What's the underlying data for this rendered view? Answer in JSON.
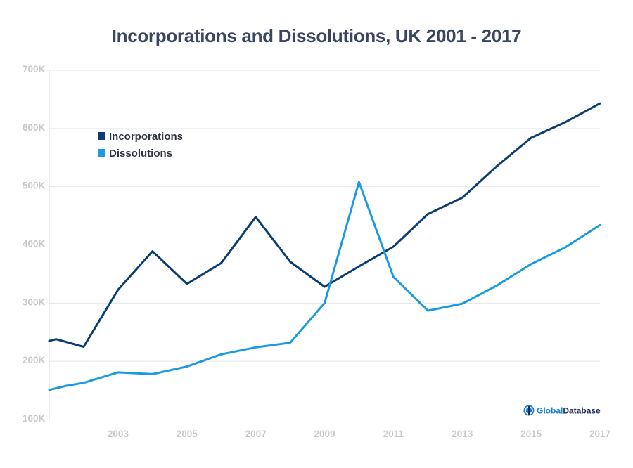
{
  "chart_data": {
    "type": "line",
    "title": "Incorporations and Dissolutions, UK 2001 - 2017",
    "xlabel": "",
    "ylabel": "",
    "x": [
      2001,
      2002,
      2003,
      2004,
      2005,
      2006,
      2007,
      2008,
      2009,
      2010,
      2011,
      2012,
      2013,
      2014,
      2015,
      2016,
      2017
    ],
    "xlim": [
      2001,
      2017
    ],
    "x_tick_values": [
      2003,
      2005,
      2007,
      2009,
      2011,
      2013,
      2015,
      2017
    ],
    "x_tick_labels": [
      "2003",
      "2005",
      "2007",
      "2009",
      "2011",
      "2013",
      "2015",
      "2017"
    ],
    "ylim": [
      100000,
      700000
    ],
    "y_tick_values": [
      100000,
      200000,
      300000,
      400000,
      500000,
      600000,
      700000
    ],
    "y_tick_labels": [
      "100K",
      "200K",
      "300K",
      "400K",
      "500K",
      "600K",
      "700K"
    ],
    "grid": "horizontal",
    "legend_position": "top-left",
    "series": [
      {
        "name": "Incorporations",
        "color": "#0a3d73",
        "x": [
          2001,
          2001.2,
          2002,
          2003,
          2004,
          2005,
          2006,
          2007,
          2008,
          2009,
          2010,
          2011,
          2012,
          2013,
          2014,
          2015,
          2016,
          2017
        ],
        "values": [
          235000,
          238000,
          225000,
          323000,
          389000,
          333000,
          369000,
          448000,
          371000,
          328000,
          363000,
          397000,
          453000,
          481000,
          535000,
          584000,
          611000,
          643000
        ]
      },
      {
        "name": "Dissolutions",
        "color": "#1a9ae0",
        "x": [
          2001,
          2001.5,
          2002,
          2003,
          2004,
          2005,
          2006,
          2007,
          2008,
          2009,
          2010,
          2011,
          2012,
          2013,
          2014,
          2015,
          2016,
          2017
        ],
        "values": [
          151000,
          158000,
          163000,
          181000,
          178000,
          191000,
          212000,
          224000,
          232000,
          300000,
          508000,
          345000,
          287000,
          299000,
          330000,
          367000,
          396000,
          434000
        ]
      }
    ]
  },
  "logo": {
    "text_part1": "Global",
    "text_part2": "Database",
    "icon": "globe-icon"
  }
}
